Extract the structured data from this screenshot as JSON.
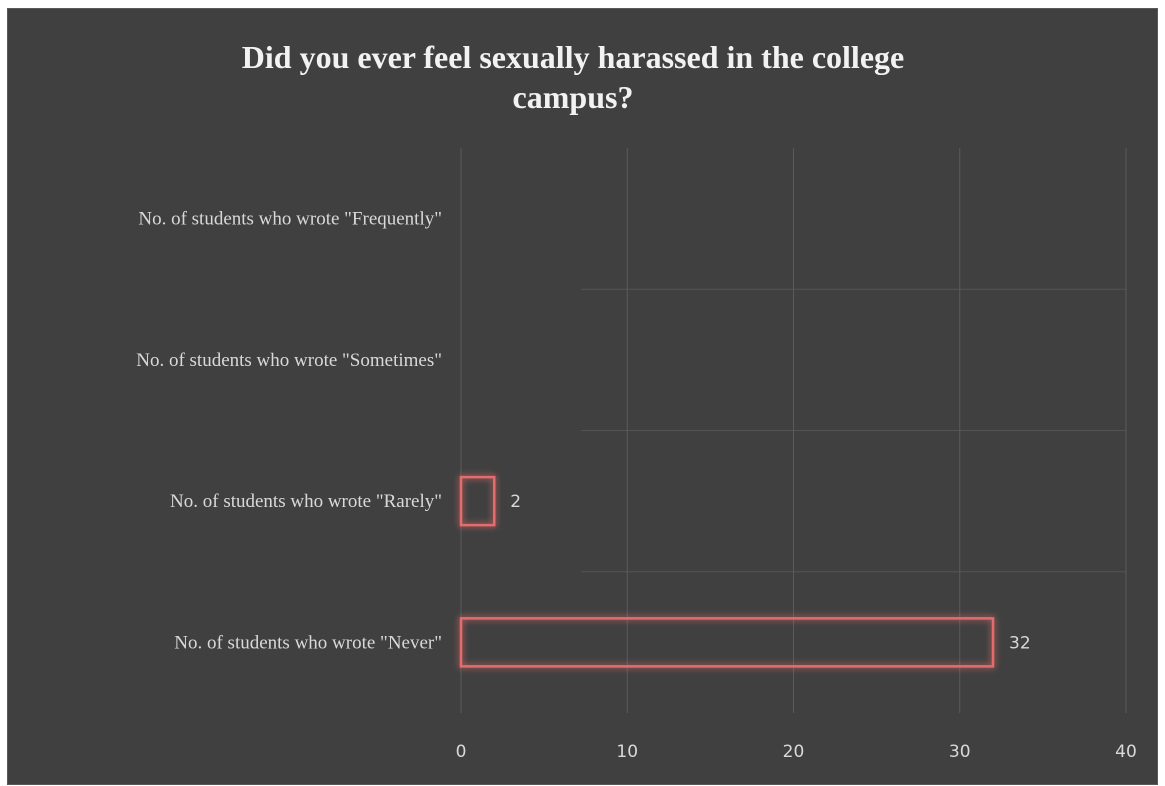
{
  "chart_data": {
    "type": "bar",
    "orientation": "horizontal",
    "title_lines": [
      "Did you ever feel sexually harassed in the college",
      "campus?"
    ],
    "categories": [
      "No. of students who wrote \"Frequently\"",
      "No. of students who wrote \"Sometimes\"",
      "No. of students who wrote \"Rarely\"",
      "No. of students who wrote \"Never\""
    ],
    "values": [
      null,
      null,
      2,
      32
    ],
    "data_labels": [
      "",
      "",
      "2",
      "32"
    ],
    "xlim": [
      0,
      40
    ],
    "xticks": [
      0,
      10,
      20,
      30,
      40
    ],
    "grid": true,
    "legend": "none",
    "colors": {
      "background": "#404040",
      "bar_outline": "#e46c6c",
      "grid": "#5a5a5a",
      "text": "#d9d9d9",
      "title": "#f2f2f2"
    }
  }
}
